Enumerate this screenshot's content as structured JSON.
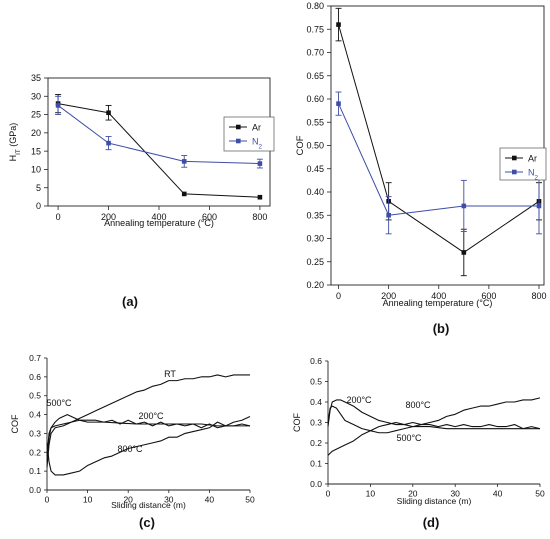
{
  "chart_data": [
    {
      "id": "a",
      "type": "line",
      "caption": "(a)",
      "xlabel": "Annealing temperature (°C)",
      "ylabel_main": "H",
      "ylabel_sub": "IT",
      "ylabel_unit": " (GPa)",
      "xlim": [
        -40,
        840
      ],
      "ylim": [
        0,
        35
      ],
      "xticks": [
        0,
        200,
        400,
        600,
        800
      ],
      "yticks": [
        0,
        5,
        10,
        15,
        20,
        25,
        30,
        35
      ],
      "legend_position": "center-right",
      "series": [
        {
          "name": "Ar",
          "name_sub": "",
          "color": "#111111",
          "marker": "square",
          "x": [
            0,
            200,
            500,
            800
          ],
          "y": [
            28.0,
            25.5,
            3.3,
            2.4
          ],
          "err": [
            2.5,
            2.0,
            0,
            0
          ]
        },
        {
          "name": "N",
          "name_sub": "2",
          "color": "#3e4ea8",
          "marker": "square",
          "x": [
            0,
            200,
            500,
            800
          ],
          "y": [
            27.5,
            17.2,
            12.2,
            11.6
          ],
          "err": [
            2.5,
            1.8,
            1.6,
            1.2
          ]
        }
      ]
    },
    {
      "id": "b",
      "type": "line",
      "caption": "(b)",
      "xlabel": "Annealing temperature (°C)",
      "ylabel": "COF",
      "xlim": [
        -30,
        820
      ],
      "ylim": [
        0.2,
        0.8
      ],
      "xticks": [
        0,
        200,
        400,
        600,
        800
      ],
      "yticks": [
        0.2,
        0.25,
        0.3,
        0.35,
        0.4,
        0.45,
        0.5,
        0.55,
        0.6,
        0.65,
        0.7,
        0.75,
        0.8
      ],
      "legend_position": "center-right",
      "series": [
        {
          "name": "Ar",
          "name_sub": "",
          "color": "#111111",
          "marker": "square",
          "x": [
            0,
            200,
            500,
            800
          ],
          "y": [
            0.76,
            0.38,
            0.27,
            0.38
          ],
          "err": [
            0.035,
            0.04,
            0.05,
            0.04
          ]
        },
        {
          "name": "N",
          "name_sub": "2",
          "color": "#3e4ea8",
          "marker": "square",
          "x": [
            0,
            200,
            500,
            800
          ],
          "y": [
            0.59,
            0.35,
            0.37,
            0.37
          ],
          "err": [
            0.025,
            0.04,
            0.055,
            0.06
          ]
        }
      ]
    },
    {
      "id": "c",
      "type": "line",
      "caption": "(c)",
      "xlabel": "Sliding distance (m)",
      "ylabel": "COF",
      "xlim": [
        0,
        50
      ],
      "ylim": [
        0,
        0.7
      ],
      "xticks": [
        0,
        10,
        20,
        30,
        40,
        50
      ],
      "yticks": [
        0,
        0.1,
        0.2,
        0.3,
        0.4,
        0.5,
        0.6,
        0.7
      ],
      "series": [
        {
          "name": "RT",
          "color": "#111111",
          "x": [
            0,
            0.5,
            1,
            2,
            4,
            6,
            8,
            10,
            12,
            14,
            16,
            18,
            20,
            22,
            24,
            26,
            28,
            30,
            32,
            34,
            36,
            38,
            40,
            42,
            44,
            46,
            48,
            50
          ],
          "y": [
            0.12,
            0.24,
            0.3,
            0.33,
            0.34,
            0.36,
            0.38,
            0.4,
            0.42,
            0.44,
            0.46,
            0.48,
            0.5,
            0.52,
            0.53,
            0.55,
            0.56,
            0.58,
            0.58,
            0.59,
            0.59,
            0.6,
            0.6,
            0.61,
            0.6,
            0.61,
            0.61,
            0.61
          ]
        },
        {
          "name": "500°C",
          "color": "#111111",
          "x": [
            0,
            0.5,
            1,
            2,
            3,
            4,
            5,
            6,
            8,
            10,
            14,
            18,
            22,
            26,
            30,
            34,
            38,
            42,
            46,
            50
          ],
          "y": [
            0.15,
            0.28,
            0.33,
            0.36,
            0.38,
            0.39,
            0.4,
            0.39,
            0.37,
            0.36,
            0.36,
            0.355,
            0.35,
            0.35,
            0.35,
            0.35,
            0.35,
            0.34,
            0.34,
            0.34
          ]
        },
        {
          "name": "200°C",
          "color": "#111111",
          "x": [
            0,
            0.5,
            1,
            2,
            4,
            6,
            8,
            10,
            12,
            14,
            16,
            18,
            20,
            22,
            24,
            26,
            28,
            30,
            32,
            34,
            36,
            38,
            40,
            42,
            44,
            46,
            48,
            50
          ],
          "y": [
            0.18,
            0.3,
            0.33,
            0.34,
            0.35,
            0.36,
            0.37,
            0.37,
            0.37,
            0.36,
            0.37,
            0.35,
            0.37,
            0.35,
            0.36,
            0.34,
            0.36,
            0.34,
            0.35,
            0.34,
            0.35,
            0.33,
            0.35,
            0.33,
            0.34,
            0.34,
            0.35,
            0.34
          ]
        },
        {
          "name": "800°C",
          "color": "#111111",
          "x": [
            0,
            0.5,
            1,
            2,
            3,
            4,
            6,
            8,
            10,
            12,
            14,
            16,
            18,
            20,
            22,
            24,
            26,
            28,
            30,
            32,
            34,
            36,
            38,
            40,
            42,
            44,
            46,
            48,
            50
          ],
          "y": [
            0.25,
            0.15,
            0.1,
            0.08,
            0.08,
            0.08,
            0.09,
            0.1,
            0.13,
            0.15,
            0.17,
            0.18,
            0.2,
            0.22,
            0.23,
            0.24,
            0.25,
            0.26,
            0.28,
            0.28,
            0.3,
            0.31,
            0.32,
            0.33,
            0.36,
            0.34,
            0.36,
            0.37,
            0.39
          ]
        }
      ]
    },
    {
      "id": "d",
      "type": "line",
      "caption": "(d)",
      "xlabel": "Sliding distance (m)",
      "ylabel": "COF",
      "xlim": [
        0,
        50
      ],
      "ylim": [
        0,
        0.6
      ],
      "xticks": [
        0,
        10,
        20,
        30,
        40,
        50
      ],
      "yticks": [
        0,
        0.1,
        0.2,
        0.3,
        0.4,
        0.5,
        0.6
      ],
      "series": [
        {
          "name": "200°C",
          "color": "#111111",
          "x": [
            0,
            0.5,
            1,
            2,
            3,
            4,
            6,
            8,
            10,
            12,
            14,
            16,
            18,
            20,
            24,
            28,
            32,
            36,
            40,
            44,
            48,
            50
          ],
          "y": [
            0.28,
            0.36,
            0.4,
            0.41,
            0.41,
            0.4,
            0.38,
            0.35,
            0.33,
            0.31,
            0.3,
            0.29,
            0.29,
            0.28,
            0.28,
            0.27,
            0.27,
            0.27,
            0.27,
            0.27,
            0.27,
            0.27
          ]
        },
        {
          "name": "800°C",
          "color": "#111111",
          "x": [
            0,
            0.5,
            1,
            2,
            3,
            4,
            6,
            8,
            10,
            12,
            14,
            16,
            18,
            20,
            22,
            24,
            26,
            28,
            30,
            32,
            34,
            36,
            38,
            40,
            42,
            44,
            46,
            48,
            50
          ],
          "y": [
            0.3,
            0.37,
            0.38,
            0.37,
            0.34,
            0.31,
            0.29,
            0.27,
            0.26,
            0.25,
            0.25,
            0.26,
            0.27,
            0.28,
            0.29,
            0.3,
            0.31,
            0.33,
            0.34,
            0.36,
            0.37,
            0.38,
            0.38,
            0.39,
            0.4,
            0.4,
            0.41,
            0.41,
            0.42
          ]
        },
        {
          "name": "500°C",
          "color": "#111111",
          "x": [
            0,
            0.5,
            1,
            2,
            4,
            6,
            8,
            10,
            12,
            14,
            16,
            18,
            20,
            22,
            24,
            26,
            28,
            30,
            32,
            34,
            36,
            38,
            40,
            42,
            44,
            46,
            48,
            50
          ],
          "y": [
            0.14,
            0.15,
            0.16,
            0.17,
            0.19,
            0.21,
            0.24,
            0.26,
            0.28,
            0.29,
            0.3,
            0.29,
            0.3,
            0.29,
            0.29,
            0.28,
            0.29,
            0.28,
            0.29,
            0.28,
            0.28,
            0.29,
            0.28,
            0.28,
            0.29,
            0.27,
            0.28,
            0.27
          ]
        }
      ]
    }
  ]
}
